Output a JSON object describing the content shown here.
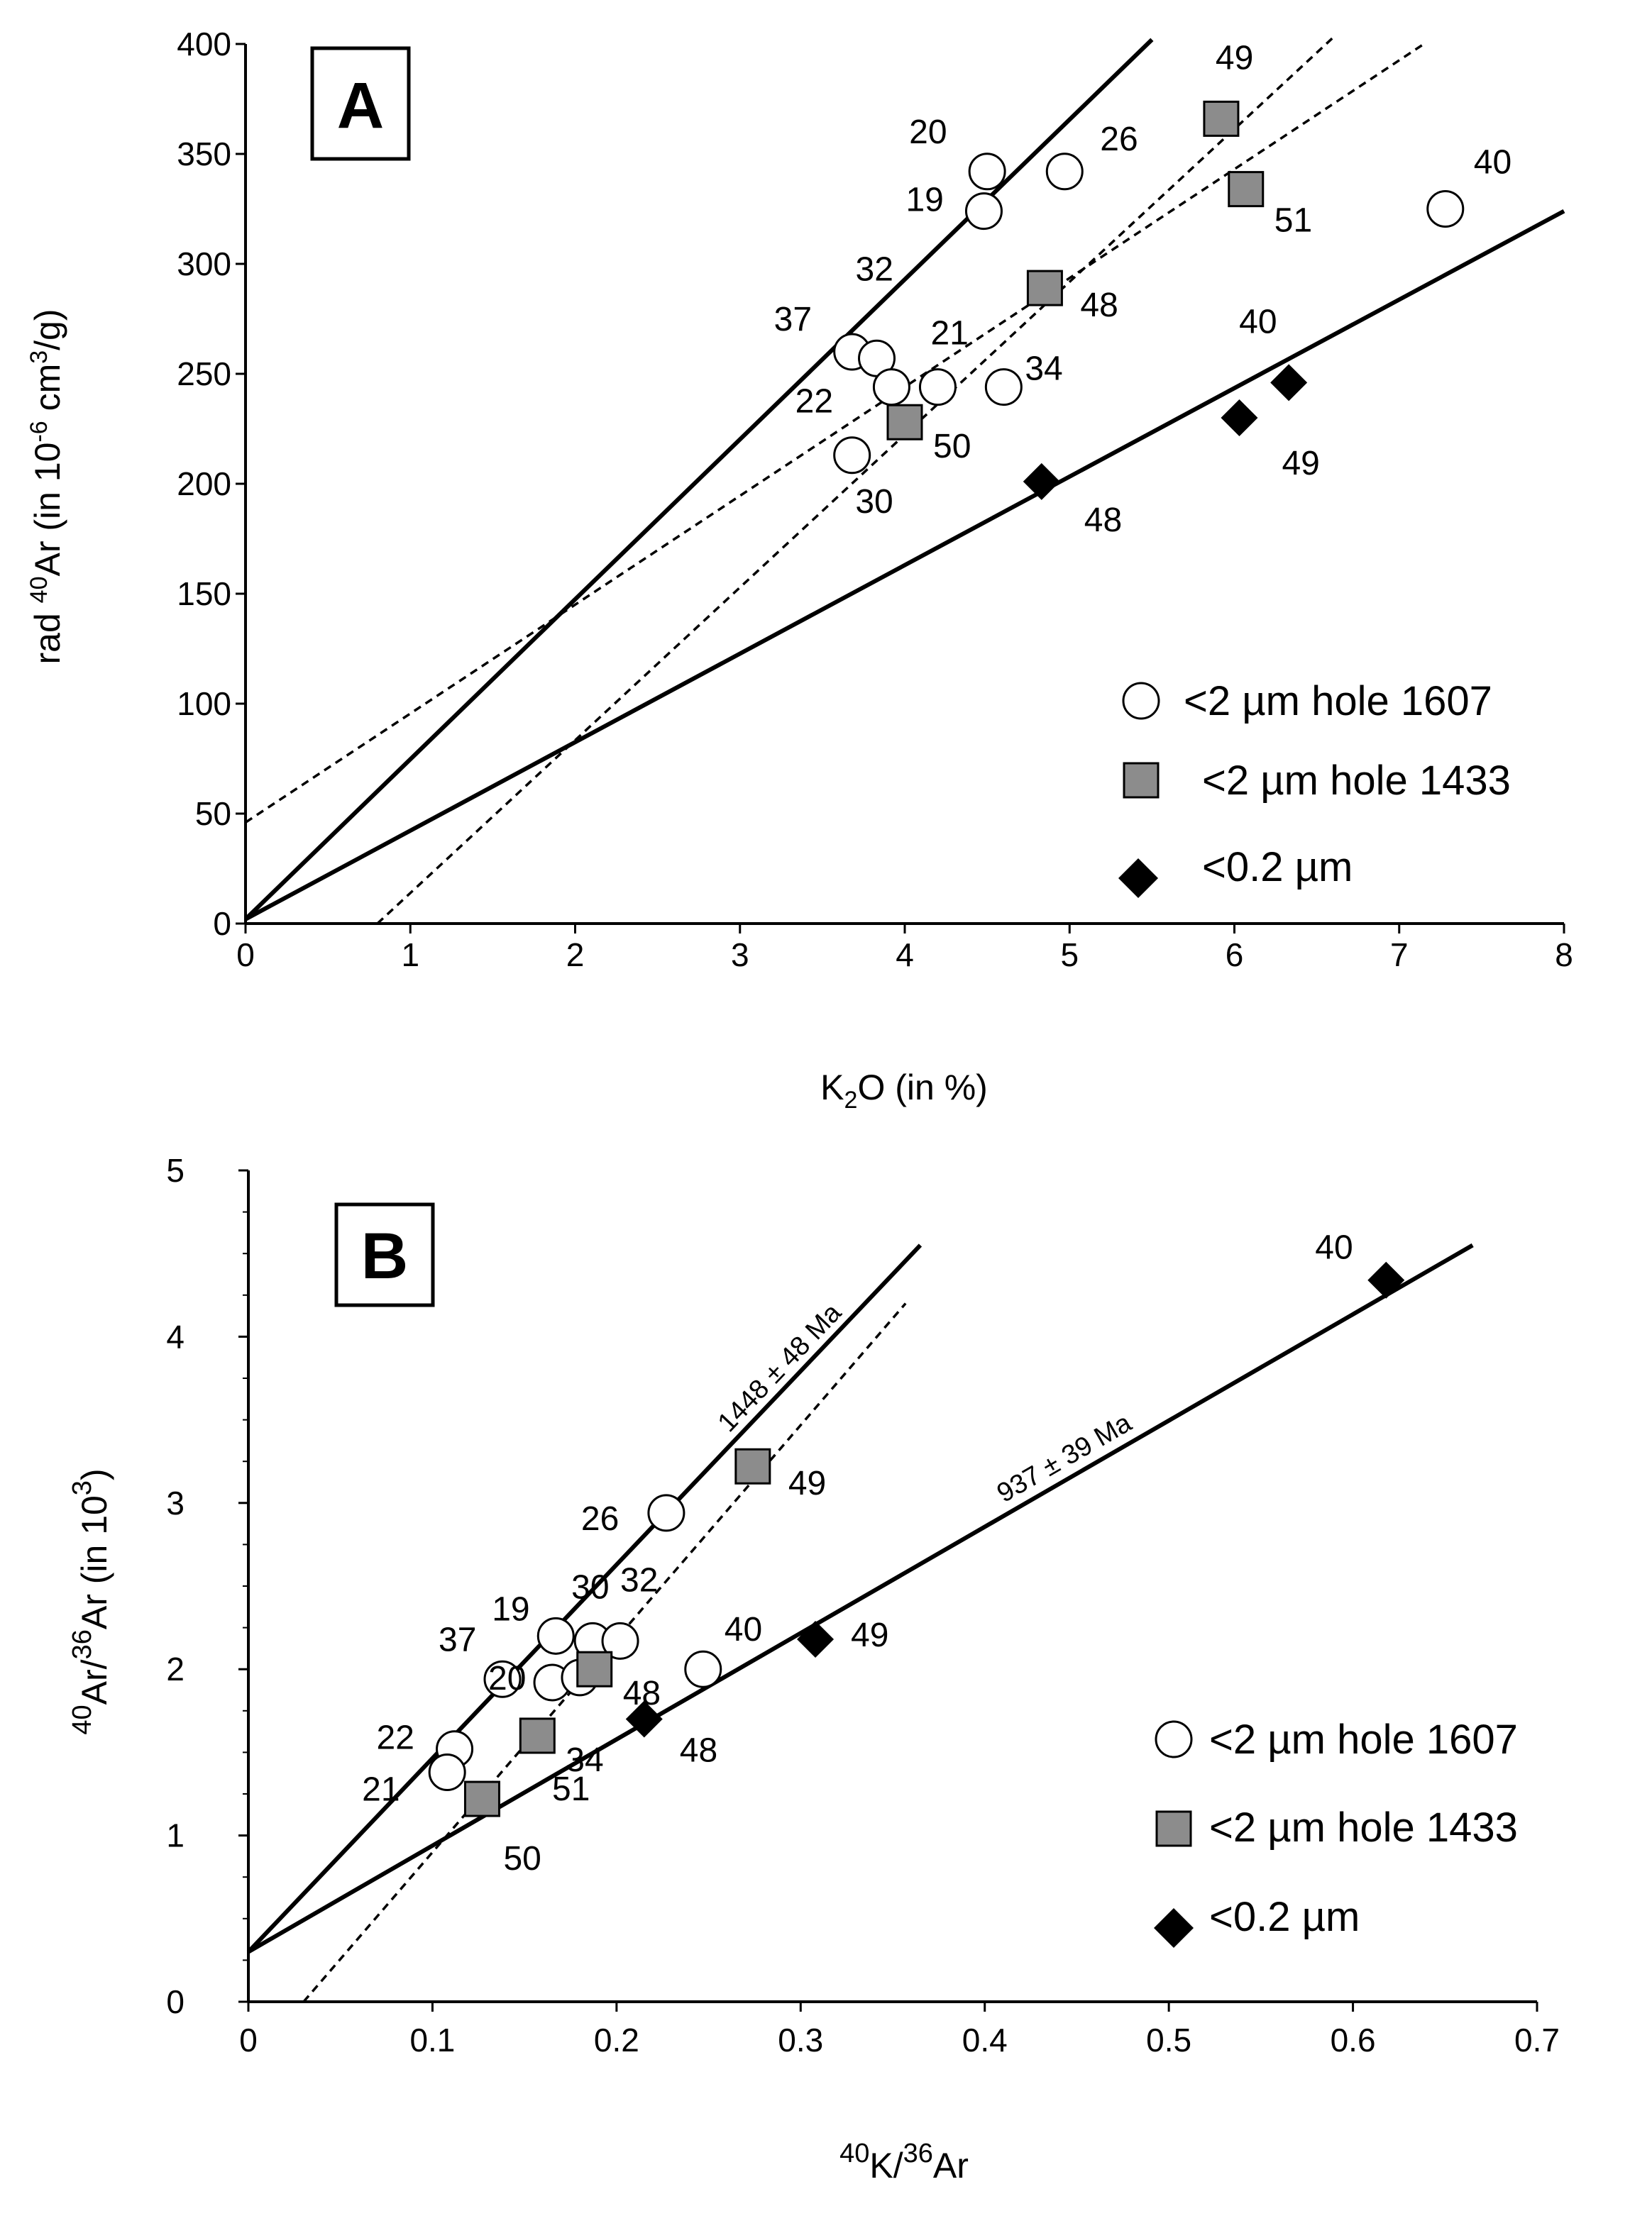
{
  "chart_data": [
    {
      "panel": "A",
      "type": "scatter",
      "xlim": [
        0,
        8
      ],
      "ylim": [
        0,
        400
      ],
      "xticks": [
        0,
        1,
        2,
        3,
        4,
        5,
        6,
        7,
        8
      ],
      "yticks": [
        0,
        50,
        100,
        150,
        200,
        250,
        300,
        350,
        400
      ],
      "xlabel": {
        "main": "K",
        "sub": "2",
        "rest": "O (in %)"
      },
      "ylabel": {
        "pre": "rad ",
        "sup1": "40",
        "mid": "Ar (in 10",
        "sup2": "-6",
        "mid2": " cm",
        "sup3": "3",
        "post": "/g)"
      },
      "series": [
        {
          "name": "<2 µm hole 1607",
          "marker": "circle",
          "points": [
            {
              "x": 4.5,
              "y": 342,
              "label": "20"
            },
            {
              "x": 4.48,
              "y": 324,
              "label": "19"
            },
            {
              "x": 4.97,
              "y": 342,
              "label": "26"
            },
            {
              "x": 3.68,
              "y": 260,
              "label": "37"
            },
            {
              "x": 3.83,
              "y": 257,
              "label": "32"
            },
            {
              "x": 3.92,
              "y": 244,
              "label": ""
            },
            {
              "x": 4.2,
              "y": 244,
              "label": "21"
            },
            {
              "x": 4.6,
              "y": 244,
              "label": "34"
            },
            {
              "x": 3.68,
              "y": 213,
              "label": "22"
            },
            {
              "x": 7.28,
              "y": 325,
              "label": "40"
            }
          ],
          "extra_labels": [
            {
              "x": 3.7,
              "y": 192,
              "label": "30"
            }
          ]
        },
        {
          "name": "<2 µm hole 1433",
          "marker": "square",
          "color": "#8c8c8c",
          "points": [
            {
              "x": 5.92,
              "y": 366,
              "label": "49"
            },
            {
              "x": 6.07,
              "y": 334,
              "label": "51"
            },
            {
              "x": 4.85,
              "y": 289,
              "label": "48"
            },
            {
              "x": 4.0,
              "y": 228,
              "label": "50"
            }
          ]
        },
        {
          "name": "<0.2 µm",
          "marker": "diamond",
          "points": [
            {
              "x": 6.33,
              "y": 246,
              "label": "40"
            },
            {
              "x": 6.03,
              "y": 230,
              "label": "49"
            },
            {
              "x": 4.83,
              "y": 201,
              "label": "48"
            }
          ]
        }
      ],
      "fit_lines": [
        {
          "style": "solid",
          "from": [
            0,
            2
          ],
          "to": [
            5.5,
            402
          ]
        },
        {
          "style": "solid",
          "from": [
            0,
            2
          ],
          "to": [
            8.0,
            324
          ]
        },
        {
          "style": "dashed",
          "from": [
            0,
            46
          ],
          "to": [
            7.15,
            400
          ]
        },
        {
          "style": "dashed",
          "from": [
            0.8,
            0
          ],
          "to": [
            6.6,
            403
          ]
        }
      ]
    },
    {
      "panel": "B",
      "type": "scatter",
      "xlim": [
        0,
        0.7
      ],
      "ylim": [
        0,
        5
      ],
      "xticks": [
        "0",
        "0.1",
        "0.2",
        "0.3",
        "0.4",
        "0.5",
        "0.6",
        "0.7"
      ],
      "yticks": [
        "0",
        "1",
        "2",
        "3",
        "4",
        "5"
      ],
      "xlabel": {
        "sup1": "40",
        "a": "K/",
        "sup2": "36",
        "b": "Ar"
      },
      "ylabel": {
        "sup1": "40",
        "a": "Ar/",
        "sup2": "36",
        "b": "Ar (in 10",
        "sup3": "3",
        "c": ")"
      },
      "series": [
        {
          "name": "<2 µm hole 1607",
          "marker": "circle",
          "points": [
            {
              "x": 0.227,
              "y": 2.94,
              "label": "26"
            },
            {
              "x": 0.167,
              "y": 2.2,
              "label": "19"
            },
            {
              "x": 0.187,
              "y": 2.17,
              "label": "30"
            },
            {
              "x": 0.202,
              "y": 2.17,
              "label": "32"
            },
            {
              "x": 0.138,
              "y": 1.94,
              "label": "37"
            },
            {
              "x": 0.165,
              "y": 1.92,
              "label": "20"
            },
            {
              "x": 0.18,
              "y": 1.95,
              "label": ""
            },
            {
              "x": 0.247,
              "y": 2.0,
              "label": "40"
            },
            {
              "x": 0.112,
              "y": 1.52,
              "label": "22"
            },
            {
              "x": 0.108,
              "y": 1.38,
              "label": "21"
            }
          ]
        },
        {
          "name": "<2 µm hole 1433",
          "marker": "square",
          "color": "#8c8c8c",
          "points": [
            {
              "x": 0.274,
              "y": 3.22,
              "label": "49"
            },
            {
              "x": 0.188,
              "y": 2.0,
              "label": "48"
            },
            {
              "x": 0.157,
              "y": 1.6,
              "label": "34"
            },
            {
              "x": 0.127,
              "y": 1.22,
              "label": "50"
            }
          ],
          "extra_labels": [
            {
              "x": 0.165,
              "y": 1.28,
              "label": "51"
            }
          ]
        },
        {
          "name": "<0.2 µm",
          "marker": "diamond",
          "points": [
            {
              "x": 0.618,
              "y": 4.34,
              "label": "40"
            },
            {
              "x": 0.308,
              "y": 2.18,
              "label": "49"
            },
            {
              "x": 0.215,
              "y": 1.7,
              "label": "48"
            }
          ]
        }
      ],
      "fit_lines": [
        {
          "style": "solid",
          "from": [
            0.0,
            0.3
          ],
          "to": [
            0.365,
            4.55
          ],
          "annotation": "1448 ± 48 Ma"
        },
        {
          "style": "solid",
          "from": [
            0.0,
            0.3
          ],
          "to": [
            0.665,
            4.55
          ],
          "annotation": "937 ± 39 Ma"
        },
        {
          "style": "dashed",
          "from": [
            0.03,
            0.0
          ],
          "to": [
            0.357,
            4.2
          ]
        }
      ]
    }
  ]
}
